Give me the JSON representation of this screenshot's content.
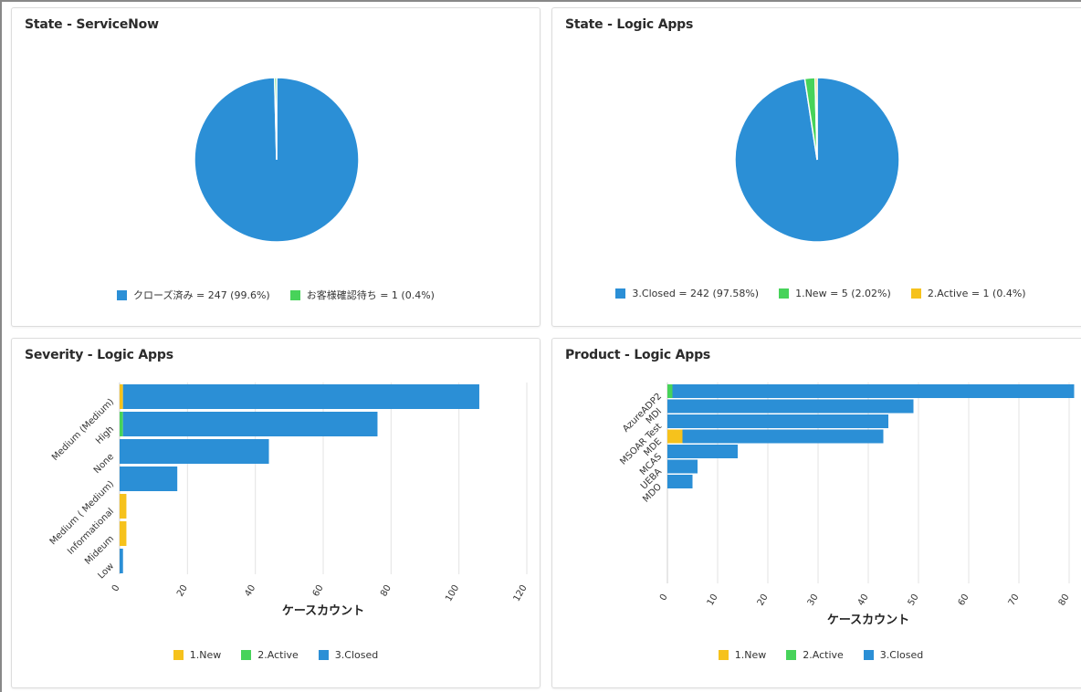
{
  "colors": {
    "closed": "#2b8fd6",
    "new": "#f6c21c",
    "active": "#47d35a",
    "grid": "#e3e3e3"
  },
  "chart_data": [
    {
      "type": "pie",
      "title": "State - ServiceNow",
      "slices": [
        {
          "name": "クローズ済み",
          "value": 247,
          "pct": 99.6,
          "color": "#2b8fd6",
          "legend": "クローズ済み = 247 (99.6%)"
        },
        {
          "name": "お客様確認待ち",
          "value": 1,
          "pct": 0.4,
          "color": "#47d35a",
          "legend": "お客様確認待ち = 1 (0.4%)"
        }
      ],
      "legend_position": "bottom"
    },
    {
      "type": "pie",
      "title": "State - Logic Apps",
      "slices": [
        {
          "name": "3.Closed",
          "value": 242,
          "pct": 97.58,
          "color": "#2b8fd6",
          "legend": "3.Closed = 242 (97.58%)"
        },
        {
          "name": "1.New",
          "value": 5,
          "pct": 2.02,
          "color": "#47d35a",
          "legend": "1.New = 5 (2.02%)"
        },
        {
          "name": "2.Active",
          "value": 1,
          "pct": 0.4,
          "color": "#f6c21c",
          "legend": "2.Active = 1 (0.4%)"
        }
      ],
      "legend_position": "bottom"
    },
    {
      "type": "bar",
      "orientation": "horizontal",
      "stacked": true,
      "title": "Severity - Logic Apps",
      "xlabel": "ケースカウント",
      "xlim": [
        0,
        120
      ],
      "xticks": [
        0,
        20,
        40,
        60,
        80,
        100,
        120
      ],
      "grid": true,
      "categories": [
        "Medium (Medium)",
        "High",
        "None",
        "Medium ( Medium)",
        "Informational",
        "Mideum",
        "Low"
      ],
      "series": [
        {
          "name": "1.New",
          "color": "#f6c21c",
          "values": [
            1,
            0,
            0,
            0,
            2,
            2,
            0
          ]
        },
        {
          "name": "2.Active",
          "color": "#47d35a",
          "values": [
            0,
            1,
            0,
            0,
            0,
            0,
            0
          ]
        },
        {
          "name": "3.Closed",
          "color": "#2b8fd6",
          "values": [
            105,
            75,
            44,
            17,
            0,
            0,
            1
          ]
        }
      ],
      "legend_position": "bottom"
    },
    {
      "type": "bar",
      "orientation": "horizontal",
      "stacked": true,
      "title": "Product - Logic Apps",
      "xlabel": "ケースカウント",
      "xlim": [
        0,
        80
      ],
      "xticks": [
        0,
        10,
        20,
        30,
        40,
        50,
        60,
        70,
        80
      ],
      "grid": true,
      "categories": [
        "AzureADP2",
        "MDI",
        "MSOAR Test",
        "MDE",
        "MCAS",
        "UEBA",
        "MDO"
      ],
      "series": [
        {
          "name": "1.New",
          "color": "#f6c21c",
          "values": [
            0,
            0,
            0,
            3,
            0,
            0,
            0
          ]
        },
        {
          "name": "2.Active",
          "color": "#47d35a",
          "values": [
            1,
            0,
            0,
            0,
            0,
            0,
            0
          ]
        },
        {
          "name": "3.Closed",
          "color": "#2b8fd6",
          "values": [
            80,
            49,
            44,
            40,
            14,
            6,
            5
          ]
        }
      ],
      "legend_position": "bottom"
    }
  ]
}
